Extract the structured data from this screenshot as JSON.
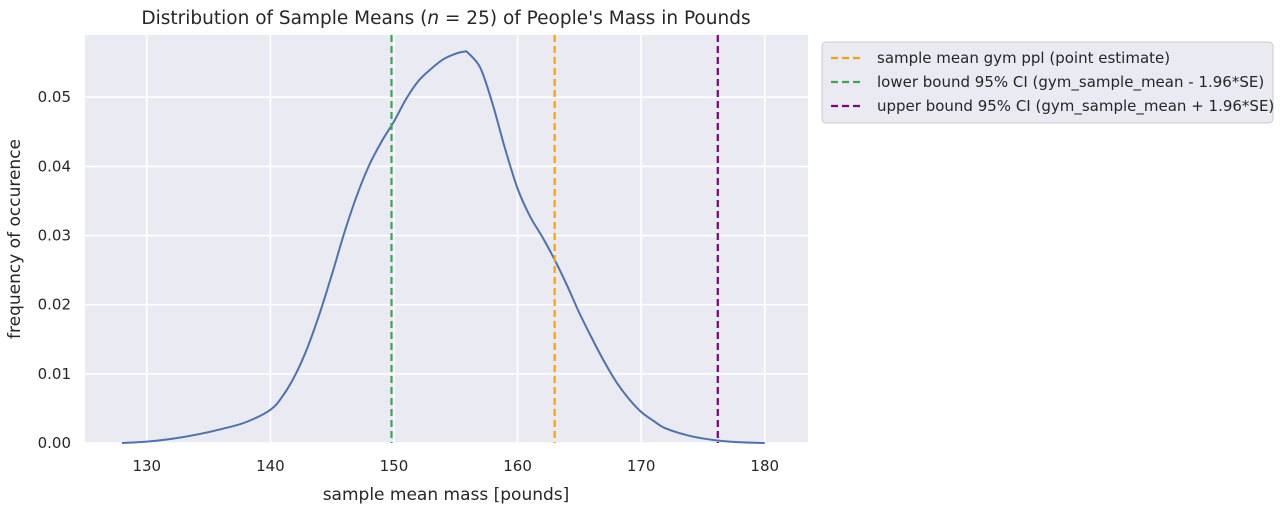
{
  "chart_data": {
    "type": "line",
    "title_prefix": "Distribution of Sample Means (",
    "title_n": "n",
    "title_eq": " = 25",
    "title_suffix": ") of People's Mass in Pounds",
    "xlabel": "sample mean mass [pounds]",
    "ylabel": "frequency of occurence",
    "xlim": [
      125,
      183.5
    ],
    "ylim": [
      0,
      0.059
    ],
    "x_ticks": [
      130,
      140,
      150,
      160,
      170,
      180
    ],
    "x_tick_labels": [
      "130",
      "140",
      "150",
      "160",
      "170",
      "180"
    ],
    "y_ticks": [
      0.0,
      0.01,
      0.02,
      0.03,
      0.04,
      0.05
    ],
    "y_tick_labels": [
      "0.00",
      "0.01",
      "0.02",
      "0.03",
      "0.04",
      "0.05"
    ],
    "grid": true,
    "background": "#eaeaf2",
    "series": [
      {
        "color": "#4c72b0",
        "x": [
          128,
          130,
          132,
          134,
          136,
          138,
          140,
          141,
          142,
          143,
          144,
          145,
          146,
          147,
          148,
          149,
          150,
          151,
          152,
          153,
          154,
          155,
          155.7,
          156,
          157,
          158,
          159,
          160,
          161,
          162,
          163,
          164,
          165,
          166,
          167,
          168,
          169,
          170,
          171,
          172,
          174,
          176,
          178,
          180
        ],
        "y": [
          0.0,
          0.0002,
          0.0006,
          0.0012,
          0.002,
          0.003,
          0.0048,
          0.0068,
          0.0098,
          0.0138,
          0.0188,
          0.0245,
          0.0305,
          0.0358,
          0.0402,
          0.0436,
          0.0465,
          0.0498,
          0.0524,
          0.0541,
          0.0555,
          0.0563,
          0.0566,
          0.0564,
          0.0542,
          0.0489,
          0.0425,
          0.0368,
          0.0328,
          0.0298,
          0.0265,
          0.0228,
          0.0188,
          0.0152,
          0.0118,
          0.0088,
          0.0064,
          0.0045,
          0.0032,
          0.0021,
          0.001,
          0.0004,
          0.0001,
          0.0
        ]
      }
    ],
    "vlines": [
      {
        "name": "sample mean gym ppl (point estimate)",
        "x": 163.0,
        "color": "#ff9f00"
      },
      {
        "name": "lower bound 95% CI (gym_sample_mean - 1.96*SE)",
        "x": 149.8,
        "color": "#3aa655"
      },
      {
        "name": "upper bound 95% CI (gym_sample_mean + 1.96*SE)",
        "x": 176.2,
        "color": "#800080"
      }
    ],
    "legend_position": "outside upper right"
  }
}
